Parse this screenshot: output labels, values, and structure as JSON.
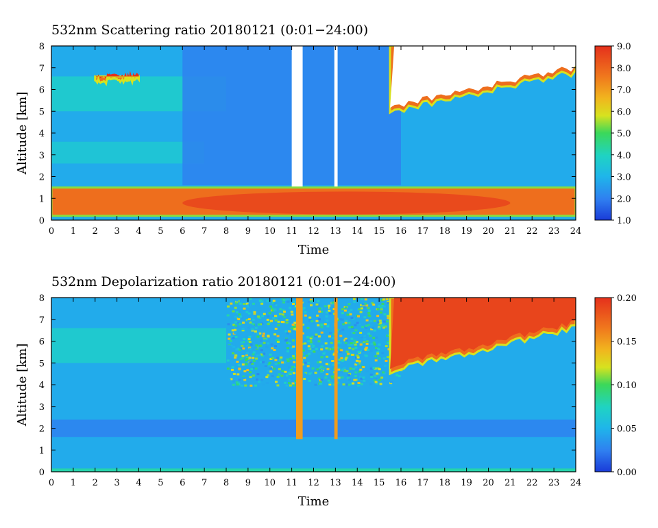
{
  "chart_data": [
    {
      "type": "heatmap",
      "title": "532nm Scattering ratio  20180121 (0:01−24:00)",
      "xlabel": "Time",
      "ylabel": "Altitude [km]",
      "xlim": [
        0,
        24
      ],
      "ylim": [
        0,
        8
      ],
      "x_ticks": [
        "0",
        "1",
        "2",
        "3",
        "4",
        "5",
        "6",
        "7",
        "8",
        "9",
        "10",
        "11",
        "12",
        "13",
        "14",
        "15",
        "16",
        "17",
        "18",
        "19",
        "20",
        "21",
        "22",
        "23",
        "24"
      ],
      "y_ticks": [
        "0",
        "1",
        "2",
        "3",
        "4",
        "5",
        "6",
        "7",
        "8"
      ],
      "colorbar": {
        "range": [
          1.0,
          9.0
        ],
        "ticks": [
          "1.0",
          "2.0",
          "3.0",
          "4.0",
          "5.0",
          "6.0",
          "7.0",
          "8.0",
          "9.0"
        ]
      },
      "saturated_color": "#ffffff",
      "features": [
        {
          "kind": "background",
          "value": 2.8
        },
        {
          "kind": "layer",
          "t0": 0,
          "t1": 8,
          "z0": 5.0,
          "z1": 6.6,
          "value": 3.8
        },
        {
          "kind": "layer",
          "t0": 0,
          "t1": 7,
          "z0": 2.6,
          "z1": 3.6,
          "value": 3.6
        },
        {
          "kind": "layer",
          "t0": 6,
          "t1": 16,
          "z0": 1.6,
          "z1": 8.0,
          "value": 2.0
        },
        {
          "kind": "column",
          "t0": 11.0,
          "t1": 11.5,
          "z0": 1.5,
          "z1": 8.0,
          "value": 9.5
        },
        {
          "kind": "column",
          "t0": 12.95,
          "t1": 13.1,
          "z0": 1.5,
          "z1": 8.0,
          "value": 9.5
        },
        {
          "kind": "boundary_layer",
          "t0": 0,
          "t1": 24,
          "z0": 0.2,
          "z1": 1.5,
          "value": 8.5
        },
        {
          "kind": "cloud",
          "t0": 15.5,
          "t1": 24,
          "z0": 4.0,
          "z1": 8.0,
          "value": 9.5
        },
        {
          "kind": "cloud",
          "t0": 2,
          "t1": 4,
          "z0": 6.3,
          "z1": 6.6,
          "value": 9.0
        }
      ]
    },
    {
      "type": "heatmap",
      "title": "532nm Depolarization ratio  20180121 (0:01−24:00)",
      "xlabel": "Time",
      "ylabel": "Altitude [km]",
      "xlim": [
        0,
        24
      ],
      "ylim": [
        0,
        8
      ],
      "x_ticks": [
        "0",
        "1",
        "2",
        "3",
        "4",
        "5",
        "6",
        "7",
        "8",
        "9",
        "10",
        "11",
        "12",
        "13",
        "14",
        "15",
        "16",
        "17",
        "18",
        "19",
        "20",
        "21",
        "22",
        "23",
        "24"
      ],
      "y_ticks": [
        "0",
        "1",
        "2",
        "3",
        "4",
        "5",
        "6",
        "7",
        "8"
      ],
      "colorbar": {
        "range": [
          0.0,
          0.2
        ],
        "ticks": [
          "0.00",
          "0.05",
          "0.10",
          "0.15",
          "0.20"
        ]
      },
      "saturated_color": "#ffffff",
      "features": [
        {
          "kind": "background",
          "value": 0.045
        },
        {
          "kind": "layer",
          "t0": 0,
          "t1": 8,
          "z0": 5.0,
          "z1": 6.6,
          "value": 0.07
        },
        {
          "kind": "layer",
          "t0": 0,
          "t1": 24,
          "z0": 1.6,
          "z1": 2.4,
          "value": 0.025
        },
        {
          "kind": "noise_region",
          "t0": 8,
          "t1": 16,
          "z0": 4.0,
          "z1": 8.0,
          "value": 0.07
        },
        {
          "kind": "column",
          "t0": 11.2,
          "t1": 11.5,
          "z0": 1.5,
          "z1": 8.0,
          "value": 0.15
        },
        {
          "kind": "column",
          "t0": 12.95,
          "t1": 13.1,
          "z0": 1.5,
          "z1": 8.0,
          "value": 0.15
        },
        {
          "kind": "cloud",
          "t0": 15.5,
          "t1": 24,
          "z0": 3.5,
          "z1": 8.0,
          "value": 0.19
        },
        {
          "kind": "surface",
          "t0": 0,
          "t1": 24,
          "z0": 0.0,
          "z1": 0.15,
          "value": 0.08
        }
      ]
    }
  ]
}
